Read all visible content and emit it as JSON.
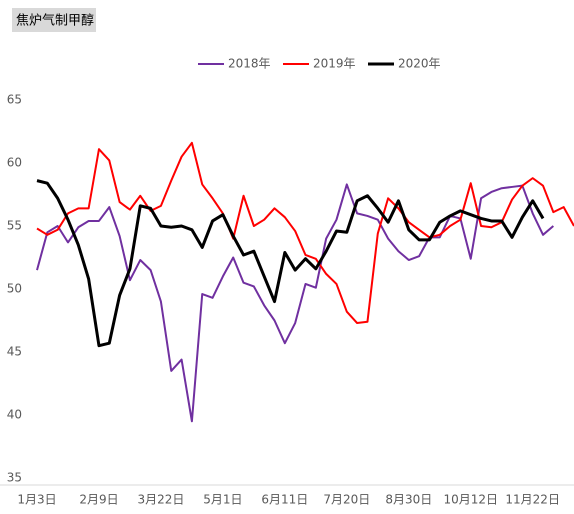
{
  "chart_data": {
    "type": "line",
    "title": "焦炉气制甲醇",
    "categories": [
      "1月3日",
      null,
      null,
      null,
      null,
      null,
      "2月9日",
      null,
      null,
      null,
      null,
      null,
      "3月22日",
      null,
      null,
      null,
      null,
      null,
      "5月1日",
      null,
      null,
      null,
      null,
      null,
      "6月11日",
      null,
      null,
      null,
      null,
      null,
      "7月20日",
      null,
      null,
      null,
      null,
      null,
      "8月30日",
      null,
      null,
      null,
      null,
      null,
      "10月12日",
      null,
      null,
      null,
      null,
      null,
      "11月22日",
      null,
      null,
      null,
      null
    ],
    "series": [
      {
        "name": "2018年",
        "color": "#7030a0",
        "values": [
          51.5,
          54.5,
          55,
          53.7,
          54.9,
          55.4,
          55.4,
          56.5,
          54.2,
          50.7,
          52.3,
          51.5,
          49,
          43.5,
          44.4,
          39.5,
          49.6,
          49.3,
          51,
          52.5,
          50.5,
          50.2,
          48.7,
          47.5,
          45.7,
          47.3,
          50.4,
          50.1,
          54,
          55.5,
          58.3,
          56,
          55.8,
          55.5,
          54,
          53,
          52.3,
          52.6,
          54.1,
          54.1,
          55.8,
          55.6,
          52.4,
          57.2,
          57.7,
          58,
          58.1,
          58.2,
          56,
          54.3,
          55,
          null,
          null
        ]
      },
      {
        "name": "2019年",
        "color": "#ff0000",
        "values": [
          54.8,
          54.3,
          54.7,
          56,
          56.4,
          56.4,
          61.1,
          60.2,
          56.9,
          56.3,
          57.4,
          56.2,
          56.6,
          58.6,
          60.5,
          61.6,
          58.3,
          57.2,
          56,
          54,
          57.4,
          55,
          55.5,
          56.4,
          55.7,
          54.6,
          52.7,
          52.4,
          51.2,
          50.4,
          48.2,
          47.3,
          47.4,
          54.4,
          57.2,
          56.4,
          55.3,
          54.7,
          54.1,
          54.3,
          55,
          55.5,
          58.4,
          55,
          54.9,
          55.3,
          57.1,
          58.2,
          58.8,
          58.2,
          56.1,
          56.5,
          55
        ]
      },
      {
        "name": "2020年",
        "color": "#000000",
        "values": [
          58.6,
          58.4,
          57.2,
          55.5,
          53.5,
          50.8,
          45.5,
          45.7,
          49.5,
          51.6,
          56.6,
          56.4,
          55,
          54.9,
          55,
          54.7,
          53.3,
          55.4,
          55.9,
          54.2,
          52.7,
          53,
          51,
          49,
          52.9,
          51.5,
          52.4,
          51.6,
          53,
          54.6,
          54.5,
          57,
          57.4,
          56.4,
          55.3,
          57,
          54.7,
          53.9,
          53.9,
          55.3,
          55.8,
          56.2,
          55.9,
          55.6,
          55.4,
          55.4,
          54.1,
          55.7,
          57,
          55.6,
          null,
          null,
          null
        ]
      }
    ],
    "ylim": [
      35,
      65
    ],
    "yticks": [
      35,
      40,
      45,
      50,
      55,
      60,
      65
    ],
    "grid": false
  }
}
